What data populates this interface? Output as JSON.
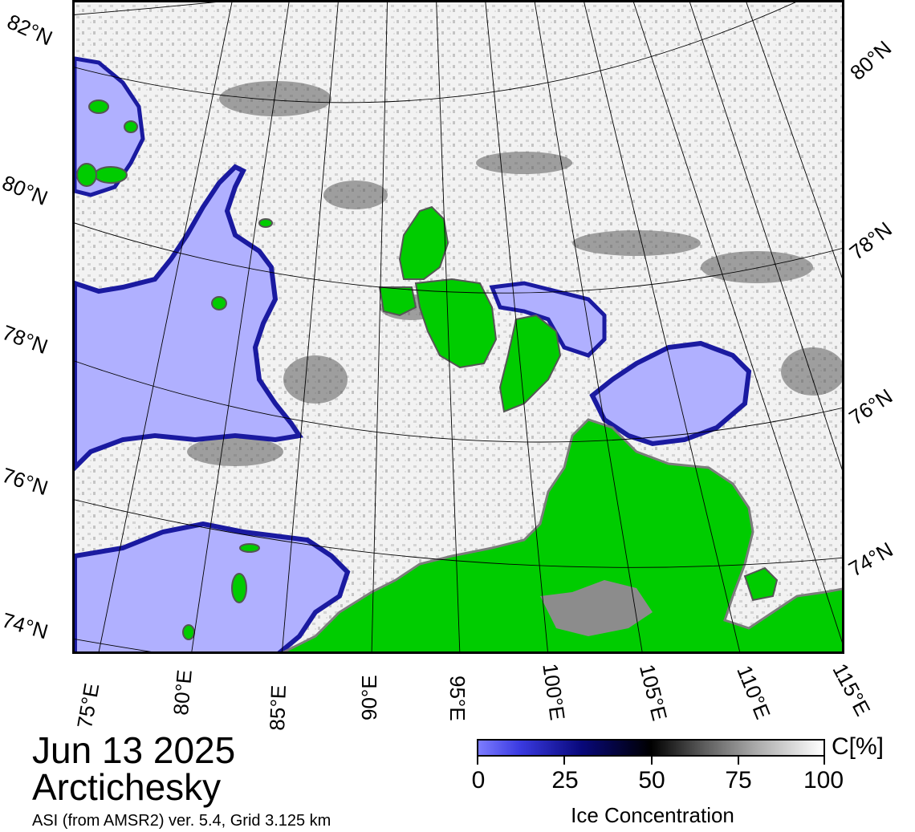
{
  "map": {
    "date": "Jun 13 2025",
    "region": "Arctichesky",
    "source": "ASI (from AMSR2) ver. 5.4,  Grid 3.125 km",
    "lat_labels_left": [
      "82°N",
      "80°N",
      "78°N",
      "76°N",
      "74°N"
    ],
    "lat_labels_right": [
      "80°N",
      "78°N",
      "76°N",
      "74°N"
    ],
    "lon_labels": [
      "75°E",
      "80°E",
      "85°E",
      "90°E",
      "95°E",
      "100°E",
      "105°E",
      "110°E",
      "115°E"
    ],
    "colors": {
      "open_water": "#b0b0ff",
      "ice_edge": "#2020b0",
      "land": "#00cc00",
      "land_ice": "#8c8c8c",
      "high_ice": "#ffffff"
    }
  },
  "colorbar": {
    "title": "Ice Concentration",
    "unit": "C[%]",
    "ticks": [
      "0",
      "25",
      "50",
      "75",
      "100"
    ],
    "range": [
      0,
      100
    ]
  }
}
